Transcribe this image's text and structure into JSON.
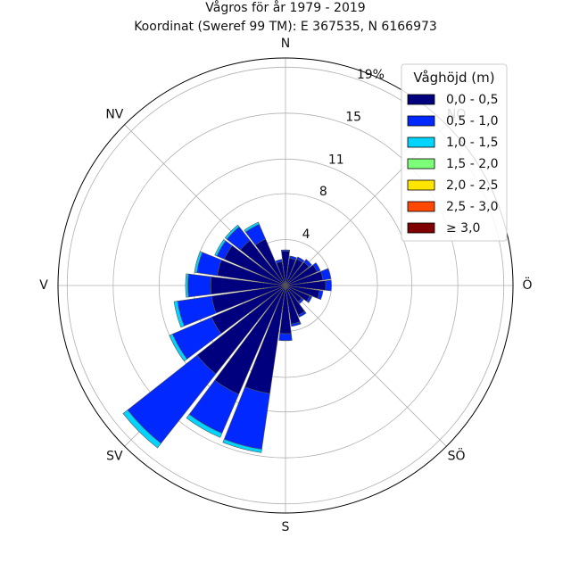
{
  "chart_data": {
    "type": "windrose",
    "title": "Vågros för år 1979 - 2019",
    "subtitle": "Koordinat (Sweref 99 TM): E 367535, N 6166973",
    "directions": [
      "N",
      "NV",
      "V",
      "SV",
      "S",
      "SÖ",
      "Ö",
      "NO"
    ],
    "radial_ticks": [
      {
        "value": 4,
        "label": "4"
      },
      {
        "value": 8,
        "label": "8"
      },
      {
        "value": 11,
        "label": "11"
      },
      {
        "value": 15,
        "label": "15"
      },
      {
        "value": 19,
        "label": "19%"
      }
    ],
    "rmax": 19.8,
    "legend": {
      "title": "Våghöjd (m)",
      "placement": "top-right",
      "bins": [
        {
          "label": "0,0 - 0,5",
          "color": "#00007f"
        },
        {
          "label": "0,5 - 1,0",
          "color": "#0028ff"
        },
        {
          "label": "1,0 - 1,5",
          "color": "#00d4ff"
        },
        {
          "label": "1,5 - 2,0",
          "color": "#7dff7a"
        },
        {
          "label": "2,0 - 2,5",
          "color": "#ffe600"
        },
        {
          "label": "2,5 - 3,0",
          "color": "#ff4800"
        },
        {
          "label": "≥ 3,0",
          "color": "#7f0000"
        }
      ]
    },
    "sector_width_deg": 13.5,
    "sectors": [
      {
        "direction_deg": 0,
        "cumulative": [
          3.0,
          3.1
        ]
      },
      {
        "direction_deg": 15,
        "cumulative": [
          2.4,
          2.6
        ]
      },
      {
        "direction_deg": 30,
        "cumulative": [
          2.5,
          2.7
        ]
      },
      {
        "direction_deg": 45,
        "cumulative": [
          2.6,
          2.9
        ]
      },
      {
        "direction_deg": 60,
        "cumulative": [
          3.0,
          3.3
        ]
      },
      {
        "direction_deg": 75,
        "cumulative": [
          3.3,
          4.0
        ]
      },
      {
        "direction_deg": 90,
        "cumulative": [
          3.5,
          4.0
        ]
      },
      {
        "direction_deg": 105,
        "cumulative": [
          3.0,
          3.3
        ]
      },
      {
        "direction_deg": 120,
        "cumulative": [
          2.3,
          2.5
        ]
      },
      {
        "direction_deg": 135,
        "cumulative": [
          1.8,
          2.0
        ]
      },
      {
        "direction_deg": 150,
        "cumulative": [
          2.8,
          3.0
        ]
      },
      {
        "direction_deg": 165,
        "cumulative": [
          3.4,
          3.6
        ]
      },
      {
        "direction_deg": 180,
        "cumulative": [
          4.2,
          4.8
        ]
      },
      {
        "direction_deg": 195,
        "cumulative": [
          9.5,
          14.4,
          14.7
        ]
      },
      {
        "direction_deg": 210,
        "cumulative": [
          10.3,
          14.0,
          14.4
        ]
      },
      {
        "direction_deg": 225,
        "cumulative": [
          9.8,
          17.5,
          18.0
        ]
      },
      {
        "direction_deg": 240,
        "cumulative": [
          7.0,
          10.7,
          11.0
        ]
      },
      {
        "direction_deg": 255,
        "cumulative": [
          6.5,
          9.5,
          9.8
        ]
      },
      {
        "direction_deg": 270,
        "cumulative": [
          6.5,
          8.5,
          8.7
        ]
      },
      {
        "direction_deg": 285,
        "cumulative": [
          6.0,
          7.8,
          8.0
        ]
      },
      {
        "direction_deg": 300,
        "cumulative": [
          5.8,
          6.5,
          6.7
        ]
      },
      {
        "direction_deg": 315,
        "cumulative": [
          5.0,
          6.5,
          6.7
        ]
      },
      {
        "direction_deg": 330,
        "cumulative": [
          4.4,
          5.8,
          6.0
        ]
      },
      {
        "direction_deg": 345,
        "cumulative": [
          2.1,
          2.3
        ]
      }
    ]
  }
}
